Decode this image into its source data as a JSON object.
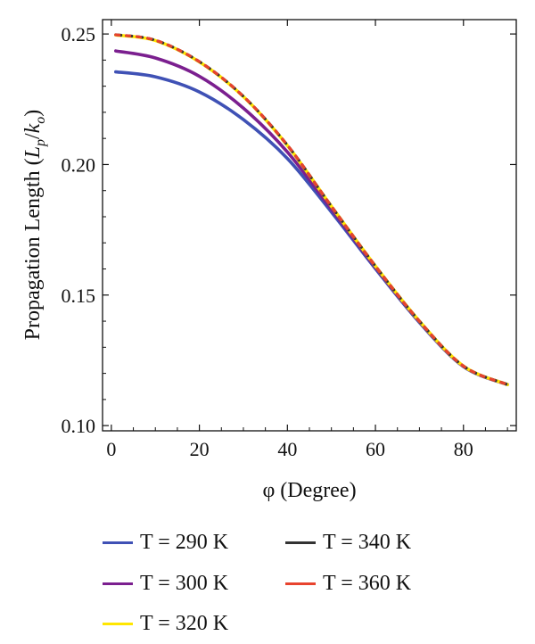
{
  "chart_data": {
    "type": "line",
    "xlabel": "φ (Degree)",
    "ylabel": "Propagation Length (L_p/k_o)",
    "xlim": [
      -2,
      92
    ],
    "ylim": [
      0.098,
      0.2555
    ],
    "xticks": [
      "0",
      "20",
      "40",
      "60",
      "80"
    ],
    "yticks": [
      "0.10",
      "0.15",
      "0.20",
      "0.25"
    ],
    "grid": false,
    "legend_position": "bottom",
    "series": [
      {
        "name": "T = 290 K",
        "color": "#3f51b5",
        "dashed": false,
        "x": [
          1,
          10,
          20,
          30,
          40,
          50,
          60,
          70,
          80,
          90
        ],
        "y": [
          0.2355,
          0.2336,
          0.2278,
          0.2172,
          0.2023,
          0.1818,
          0.1601,
          0.1395,
          0.1226,
          0.1157
        ]
      },
      {
        "name": "T = 300 K",
        "color": "#7b1f8f",
        "dashed": false,
        "x": [
          1,
          10,
          20,
          30,
          40,
          50,
          60,
          70,
          80,
          90
        ],
        "y": [
          0.2435,
          0.2408,
          0.2338,
          0.2216,
          0.2048,
          0.1829,
          0.1606,
          0.1398,
          0.1227,
          0.1157
        ]
      },
      {
        "name": "T = 320 K",
        "color": "#ffe600",
        "dashed": false,
        "x": [
          1,
          10,
          20,
          30,
          40,
          50,
          60,
          70,
          80,
          90
        ],
        "y": [
          0.2496,
          0.2475,
          0.2393,
          0.226,
          0.2073,
          0.184,
          0.1611,
          0.14,
          0.1228,
          0.1157
        ]
      },
      {
        "name": "T = 340 K",
        "color": "#333333",
        "dashed": true,
        "x": [
          1,
          10,
          20,
          30,
          40,
          50,
          60,
          70,
          80,
          90
        ],
        "y": [
          0.2497,
          0.2476,
          0.2394,
          0.2261,
          0.2074,
          0.184,
          0.1611,
          0.14,
          0.1228,
          0.1157
        ]
      },
      {
        "name": "T = 360 K",
        "color": "#e8432e",
        "dashed": true,
        "x": [
          1,
          10,
          20,
          30,
          40,
          50,
          60,
          70,
          80,
          90
        ],
        "y": [
          0.2497,
          0.2476,
          0.2394,
          0.2261,
          0.2074,
          0.184,
          0.1611,
          0.14,
          0.1228,
          0.1157
        ]
      }
    ]
  }
}
